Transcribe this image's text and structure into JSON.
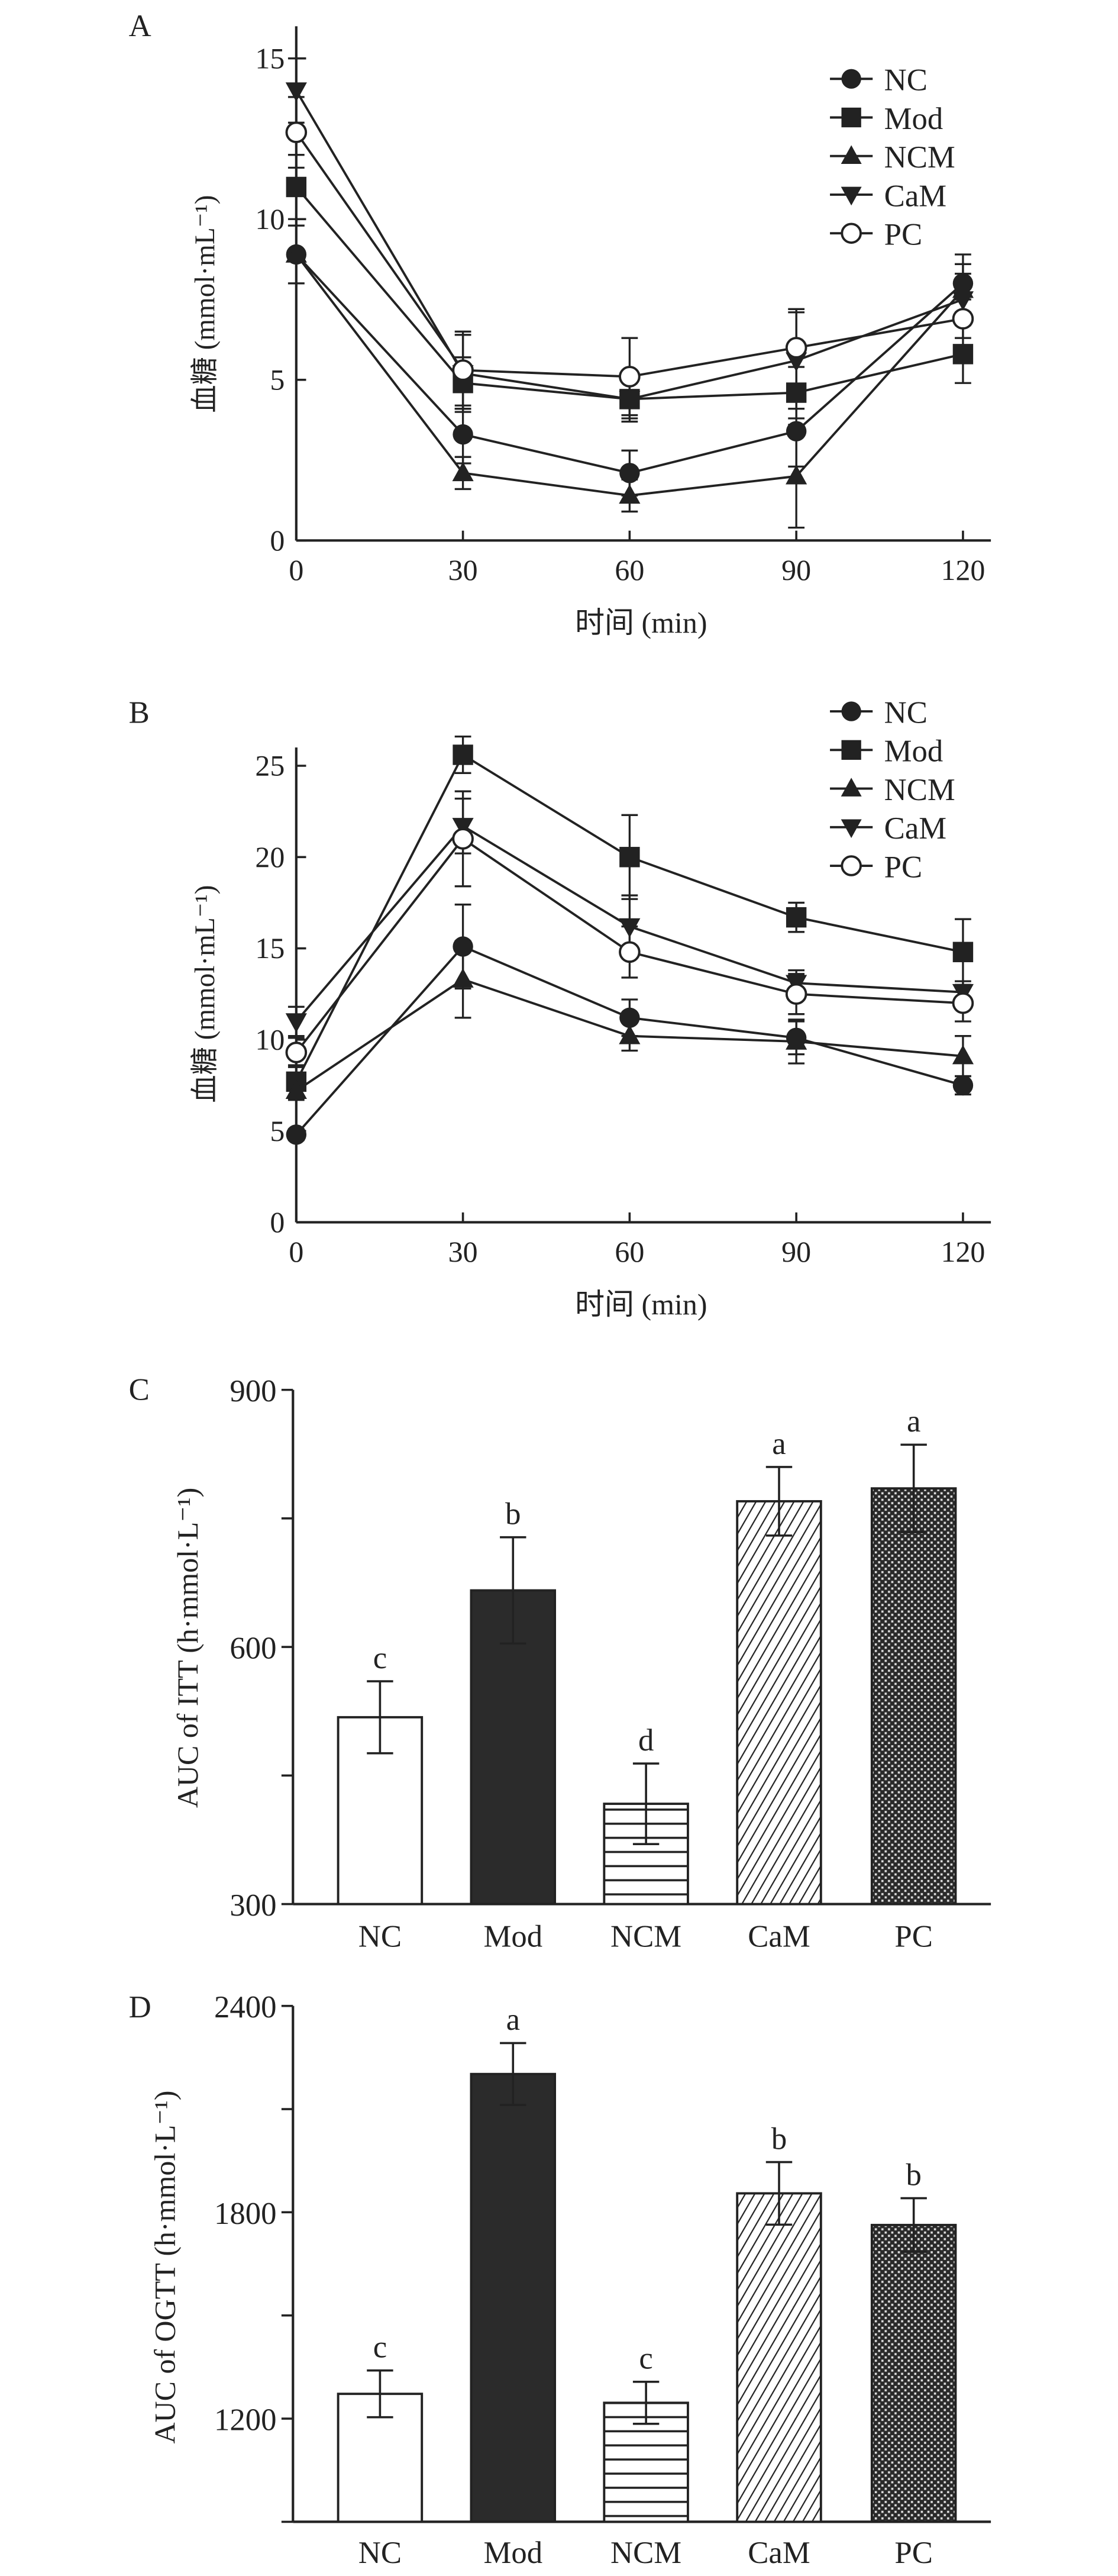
{
  "chart_data": [
    {
      "panel": "A",
      "type": "line",
      "title": "",
      "xlabel": "时间 (min)",
      "ylabel": "血糖 (mmol·mL⁻¹)",
      "x": [
        0,
        30,
        60,
        90,
        120
      ],
      "xticks": [
        "0",
        "30",
        "60",
        "90",
        "120"
      ],
      "yticks": [
        "0",
        "5",
        "10",
        "15"
      ],
      "xlim": [
        0,
        120
      ],
      "ylim": [
        0,
        16
      ],
      "legend_position": "top-right",
      "series": [
        {
          "name": "NC",
          "marker": "circle-filled",
          "values": [
            8.9,
            3.3,
            2.1,
            3.4,
            8.0
          ],
          "errors": [
            0.9,
            0.9,
            0.7,
            1.1,
            0.9
          ]
        },
        {
          "name": "Mod",
          "marker": "square-filled",
          "values": [
            11.0,
            4.9,
            4.4,
            4.6,
            5.8
          ],
          "errors": [
            1.0,
            0.8,
            0.6,
            0.8,
            0.9
          ]
        },
        {
          "name": "NCM",
          "marker": "triangle-up",
          "values": [
            8.9,
            2.1,
            1.4,
            2.0,
            7.8
          ],
          "errors": [
            0.9,
            0.5,
            0.5,
            1.6,
            0.8
          ]
        },
        {
          "name": "CaM",
          "marker": "triangle-down",
          "values": [
            14.0,
            5.2,
            4.4,
            5.6,
            7.5
          ],
          "errors": [
            1.0,
            1.2,
            0.7,
            1.5,
            0.8
          ]
        },
        {
          "name": "PC",
          "marker": "circle-open",
          "values": [
            12.7,
            5.3,
            5.1,
            6.0,
            6.9
          ],
          "errors": [
            1.1,
            1.2,
            1.2,
            1.2,
            0.6
          ]
        }
      ]
    },
    {
      "panel": "B",
      "type": "line",
      "title": "",
      "xlabel": "时间 (min)",
      "ylabel": "血糖 (mmol·mL⁻¹)",
      "x": [
        0,
        30,
        60,
        90,
        120
      ],
      "xticks": [
        "0",
        "30",
        "60",
        "90",
        "120"
      ],
      "yticks": [
        "0",
        "5",
        "10",
        "15",
        "20",
        "25"
      ],
      "xlim": [
        0,
        120
      ],
      "ylim": [
        0,
        26
      ],
      "legend_position": "top-right",
      "series": [
        {
          "name": "NC",
          "marker": "circle-filled",
          "values": [
            4.8,
            15.1,
            11.2,
            10.1,
            7.5
          ],
          "errors": [
            0.3,
            2.3,
            1.0,
            0.9,
            0.5
          ]
        },
        {
          "name": "Mod",
          "marker": "square-filled",
          "values": [
            7.7,
            25.6,
            20.0,
            16.7,
            14.8
          ],
          "errors": [
            0.9,
            1.0,
            2.3,
            0.8,
            1.8
          ]
        },
        {
          "name": "NCM",
          "marker": "triangle-up",
          "values": [
            7.2,
            13.3,
            10.2,
            9.9,
            9.1
          ],
          "errors": [
            0.5,
            2.1,
            0.8,
            1.2,
            1.1
          ]
        },
        {
          "name": "CaM",
          "marker": "triangle-down",
          "values": [
            11.0,
            21.7,
            16.2,
            13.1,
            12.6
          ],
          "errors": [
            0.8,
            1.5,
            1.7,
            0.7,
            0.6
          ]
        },
        {
          "name": "PC",
          "marker": "circle-open",
          "values": [
            9.3,
            21.0,
            14.8,
            12.5,
            12.0
          ],
          "errors": [
            0.8,
            2.6,
            1.4,
            1.1,
            1.0
          ]
        }
      ]
    },
    {
      "panel": "C",
      "type": "bar",
      "title": "",
      "xlabel": "",
      "ylabel": "AUC of ITT (h·mmol·L⁻¹)",
      "categories": [
        "NC",
        "Mod",
        "NCM",
        "CaM",
        "PC"
      ],
      "values": [
        518,
        666,
        417,
        770,
        785
      ],
      "errors": [
        42,
        62,
        47,
        40,
        51
      ],
      "significance": [
        "c",
        "b",
        "d",
        "a",
        "a"
      ],
      "patterns": [
        "white",
        "black",
        "horizontal-lines",
        "diagonal-hatch",
        "checker"
      ],
      "yticks": [
        "300",
        "600",
        "900"
      ],
      "ylim": [
        300,
        900
      ]
    },
    {
      "panel": "D",
      "type": "bar",
      "title": "",
      "xlabel": "",
      "ylabel": "AUC of OGTT (h·mmol·L⁻¹)",
      "categories": [
        "NC",
        "Mod",
        "NCM",
        "CaM",
        "PC"
      ],
      "values": [
        1272,
        2202,
        1246,
        1855,
        1763
      ],
      "errors": [
        68,
        90,
        61,
        91,
        78
      ],
      "significance": [
        "c",
        "a",
        "c",
        "b",
        "b"
      ],
      "patterns": [
        "white",
        "black",
        "horizontal-lines",
        "diagonal-hatch",
        "checker"
      ],
      "yticks": [
        "1200",
        "1800",
        "2400"
      ],
      "ylim": [
        900,
        2400
      ]
    }
  ]
}
